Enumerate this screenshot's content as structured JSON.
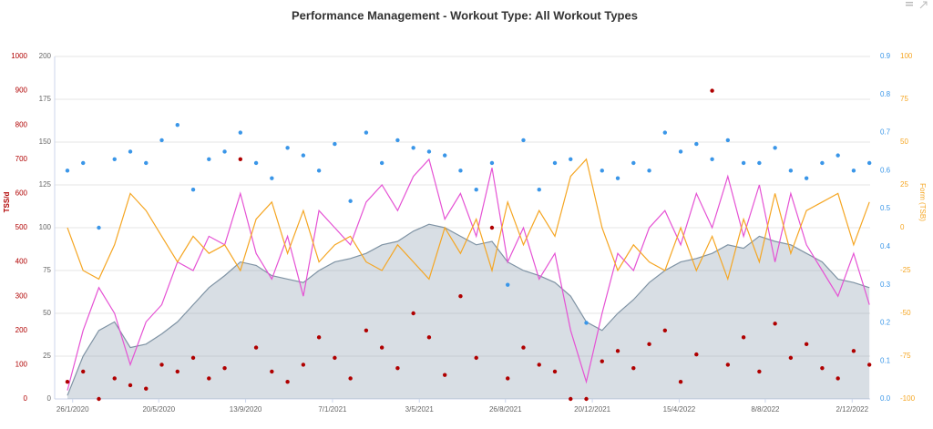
{
  "chart_data": {
    "type": "line",
    "title": "Performance Management - Workout Type: All Workout Types",
    "x": [
      "2020-01-19",
      "2020-02-09",
      "2020-03-01",
      "2020-03-22",
      "2020-04-12",
      "2020-05-03",
      "2020-05-24",
      "2020-06-14",
      "2020-07-05",
      "2020-07-26",
      "2020-08-16",
      "2020-09-06",
      "2020-09-27",
      "2020-10-18",
      "2020-11-08",
      "2020-11-29",
      "2020-12-20",
      "2021-01-10",
      "2021-01-31",
      "2021-02-21",
      "2021-03-14",
      "2021-04-04",
      "2021-04-25",
      "2021-05-16",
      "2021-06-06",
      "2021-06-27",
      "2021-07-18",
      "2021-08-08",
      "2021-08-29",
      "2021-09-19",
      "2021-10-10",
      "2021-10-31",
      "2021-11-21",
      "2021-12-12",
      "2022-01-02",
      "2022-01-23",
      "2022-02-13",
      "2022-03-06",
      "2022-03-27",
      "2022-04-17",
      "2022-05-08",
      "2022-05-29",
      "2022-06-19",
      "2022-07-10",
      "2022-07-31",
      "2022-08-21",
      "2022-09-11",
      "2022-10-02",
      "2022-10-23",
      "2022-11-13",
      "2022-12-04",
      "2022-12-25"
    ],
    "xlim": [
      "2020-01-02",
      "2022-12-26"
    ],
    "xticks": [
      {
        "value": "2020-01-26",
        "label": "26/1/2020"
      },
      {
        "value": "2020-05-20",
        "label": "20/5/2020"
      },
      {
        "value": "2020-09-13",
        "label": "13/9/2020"
      },
      {
        "value": "2021-01-07",
        "label": "7/1/2021"
      },
      {
        "value": "2021-05-03",
        "label": "3/5/2021"
      },
      {
        "value": "2021-08-26",
        "label": "26/8/2021"
      },
      {
        "value": "2021-12-20",
        "label": "20/12/2021"
      },
      {
        "value": "2022-04-15",
        "label": "15/4/2022"
      },
      {
        "value": "2022-08-08",
        "label": "8/8/2022"
      },
      {
        "value": "2022-12-02",
        "label": "2/12/2022"
      }
    ],
    "ylim": [
      0,
      200
    ],
    "yticks": [
      0,
      25,
      50,
      75,
      100,
      125,
      150,
      175,
      200
    ],
    "grid": true,
    "y2label": "Form (TSB)",
    "y2lim": [
      -100,
      100
    ],
    "y2ticks": [
      -100,
      -75,
      -50,
      -25,
      0,
      25,
      50,
      75,
      100
    ],
    "y3label": "TSS/d",
    "y3lim": [
      0,
      1000
    ],
    "y3ticks": [
      0,
      100,
      200,
      300,
      400,
      500,
      600,
      700,
      800,
      900,
      1000
    ],
    "y4lim": [
      0,
      0.9
    ],
    "y4ticks": [
      {
        "value": 0,
        "label": "0.0"
      },
      0.1,
      0.2,
      0.3,
      0.4,
      0.5,
      0.6,
      0.7,
      0.8,
      0.9
    ],
    "series": [
      {
        "type": "area",
        "color": "#7f93a4",
        "axis": "y",
        "values": [
          2,
          25,
          40,
          45,
          30,
          32,
          38,
          45,
          55,
          65,
          72,
          80,
          78,
          72,
          70,
          68,
          75,
          80,
          82,
          85,
          90,
          92,
          98,
          102,
          100,
          95,
          90,
          92,
          80,
          75,
          72,
          68,
          60,
          45,
          40,
          50,
          58,
          68,
          75,
          80,
          82,
          85,
          90,
          88,
          95,
          92,
          90,
          85,
          80,
          70,
          68,
          65
        ]
      },
      {
        "type": "line",
        "color": "#e552d4",
        "axis": "y",
        "values": [
          5,
          40,
          65,
          50,
          20,
          45,
          55,
          80,
          75,
          95,
          90,
          120,
          85,
          70,
          95,
          60,
          110,
          100,
          90,
          115,
          125,
          110,
          130,
          140,
          105,
          120,
          95,
          135,
          80,
          100,
          70,
          85,
          40,
          10,
          50,
          85,
          75,
          100,
          110,
          90,
          120,
          100,
          130,
          95,
          125,
          80,
          120,
          90,
          75,
          60,
          85,
          55
        ]
      },
      {
        "type": "line",
        "color": "#f5a623",
        "axis": "y2",
        "values": [
          0,
          -25,
          -30,
          -10,
          20,
          10,
          -5,
          -20,
          -5,
          -15,
          -10,
          -25,
          5,
          15,
          -15,
          10,
          -20,
          -10,
          -5,
          -20,
          -25,
          -10,
          -20,
          -30,
          0,
          -15,
          5,
          -25,
          15,
          -10,
          10,
          -5,
          30,
          40,
          0,
          -25,
          -10,
          -20,
          -25,
          0,
          -25,
          -5,
          -30,
          5,
          -20,
          20,
          -15,
          10,
          15,
          20,
          -10,
          15
        ]
      },
      {
        "type": "scatter",
        "color": "#b00000",
        "axis": "y3",
        "values": [
          50,
          80,
          0,
          60,
          40,
          30,
          100,
          80,
          120,
          60,
          90,
          700,
          150,
          80,
          50,
          100,
          180,
          120,
          60,
          200,
          150,
          90,
          250,
          180,
          70,
          300,
          120,
          500,
          60,
          150,
          100,
          80,
          0,
          0,
          110,
          140,
          90,
          160,
          200,
          50,
          130,
          900,
          100,
          180,
          80,
          220,
          120,
          160,
          90,
          60,
          140,
          100
        ]
      },
      {
        "type": "scatter",
        "color": "#3a96e8",
        "axis": "y4",
        "values": [
          0.6,
          0.62,
          0.45,
          0.63,
          0.65,
          0.62,
          0.68,
          0.72,
          0.55,
          0.63,
          0.65,
          0.7,
          0.62,
          0.58,
          0.66,
          0.64,
          0.6,
          0.67,
          0.52,
          0.7,
          0.62,
          0.68,
          0.66,
          0.65,
          0.64,
          0.6,
          0.55,
          0.62,
          0.3,
          0.68,
          0.55,
          0.62,
          0.63,
          0.2,
          0.6,
          0.58,
          0.62,
          0.6,
          0.7,
          0.65,
          0.67,
          0.63,
          0.68,
          0.62,
          0.62,
          0.66,
          0.6,
          0.58,
          0.62,
          0.64,
          0.6,
          0.62
        ]
      }
    ]
  }
}
